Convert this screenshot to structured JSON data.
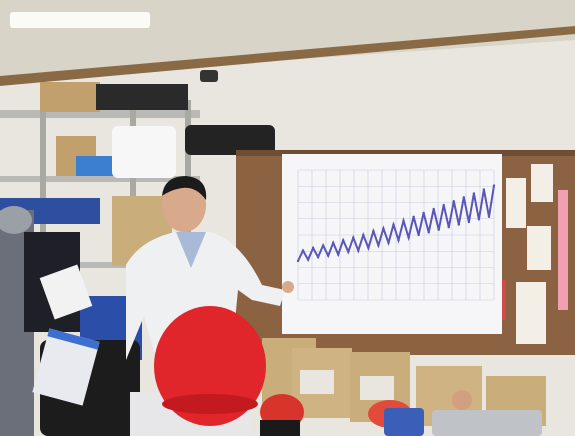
{
  "scene": {
    "description_alt": "",
    "colors": {
      "wall": "#e9e6df",
      "ceiling": "#d9d4c8",
      "beam": "#8a6a45",
      "corkboard": "#8b6242",
      "chart_paper": "#f6f6f8",
      "coat": "#eef0f2",
      "red_cap": "#e0262a",
      "box": "#c9ad7a",
      "crate_blue": "#2b4fa8",
      "chart_line": "#5a55b8"
    }
  },
  "chart_data": {
    "type": "line",
    "title": "",
    "xlabel": "",
    "ylabel": "",
    "grid": true,
    "series": [
      {
        "values": [
          30,
          38,
          31,
          40,
          33,
          42,
          34,
          44,
          35,
          46,
          37,
          48,
          38,
          50,
          40,
          53,
          42,
          55,
          44,
          58,
          46,
          61,
          48,
          64,
          50,
          67,
          52,
          70,
          54,
          73,
          56,
          76,
          58,
          79,
          60,
          82,
          62,
          85,
          64,
          88
        ]
      }
    ]
  }
}
